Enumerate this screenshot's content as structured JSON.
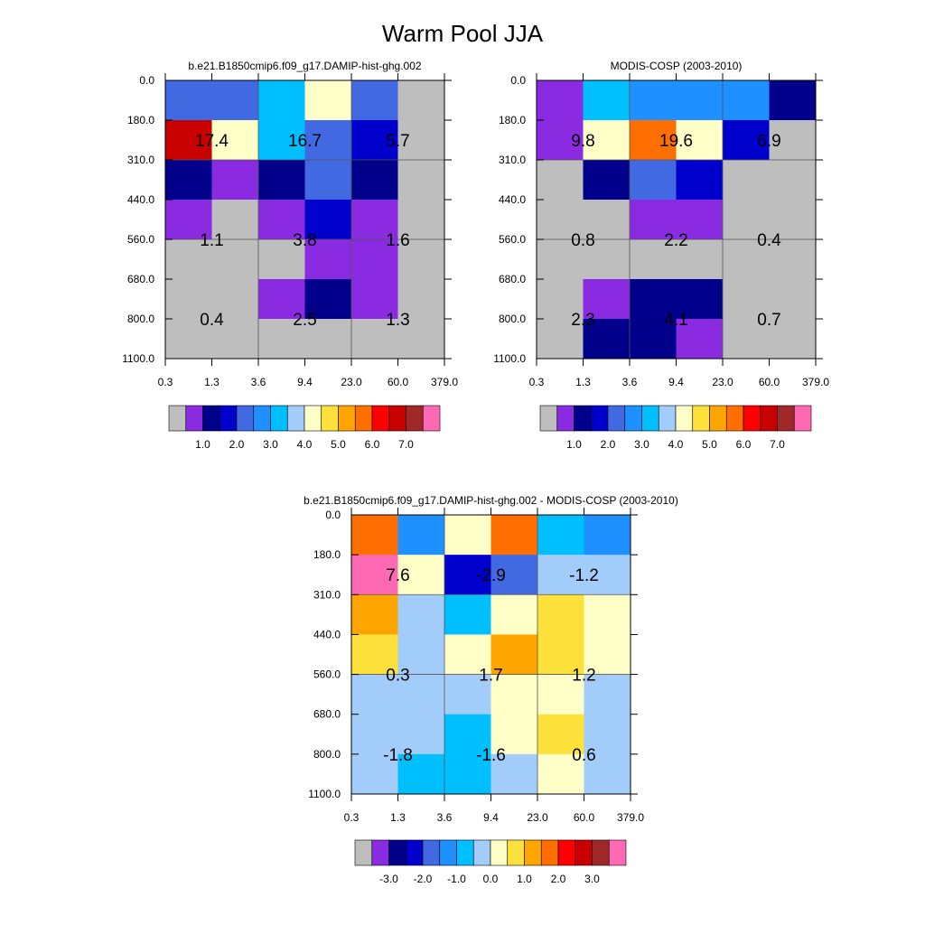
{
  "page_title": "Warm Pool JJA",
  "palettes": {
    "absolute": [
      "#bebebe",
      "#8a2be2",
      "#00008b",
      "#0000cd",
      "#4169e1",
      "#1e90ff",
      "#00bfff",
      "#a2cdfa",
      "#ffffc8",
      "#ffe13c",
      "#ffa500",
      "#ff6e00",
      "#ff0000",
      "#c80000",
      "#a02828",
      "#ff69b4"
    ],
    "difference": [
      "#bebebe",
      "#8a2be2",
      "#00008b",
      "#0000cd",
      "#4169e1",
      "#1e90ff",
      "#00bfff",
      "#a2cdfa",
      "#ffffc8",
      "#ffe13c",
      "#ffa500",
      "#ff6e00",
      "#ff0000",
      "#c80000",
      "#a02828",
      "#ff69b4"
    ]
  },
  "colorbars": {
    "absolute": {
      "labels": [
        "1.0",
        "2.0",
        "3.0",
        "4.0",
        "5.0",
        "6.0",
        "7.0"
      ]
    },
    "difference": {
      "labels": [
        "-3.0",
        "-2.0",
        "-1.0",
        "0.0",
        "1.0",
        "2.0",
        "3.0"
      ]
    }
  },
  "chart_data": [
    {
      "type": "heatmap",
      "title": "b.e21.B1850cmip6.f09_g17.DAMIP-hist-ghg.002",
      "x_tick_labels": [
        "0.3",
        "1.3",
        "3.6",
        "9.4",
        "23.0",
        "60.0",
        "379.0"
      ],
      "y_tick_labels": [
        "0.0",
        "180.0",
        "310.0",
        "440.0",
        "560.0",
        "680.0",
        "800.0",
        "1100.0"
      ],
      "palette": "absolute",
      "grid_color_index": [
        [
          4,
          4,
          6,
          8,
          4,
          0
        ],
        [
          13,
          8,
          6,
          4,
          3,
          0
        ],
        [
          2,
          1,
          2,
          4,
          2,
          0
        ],
        [
          1,
          0,
          1,
          3,
          1,
          0
        ],
        [
          0,
          0,
          0,
          1,
          1,
          0
        ],
        [
          0,
          0,
          1,
          2,
          1,
          0
        ],
        [
          0,
          0,
          0,
          0,
          0,
          0
        ]
      ],
      "block_labels": [
        [
          "17.4",
          "16.7",
          "5.7"
        ],
        [
          "1.1",
          "3.8",
          "1.6"
        ],
        [
          "0.4",
          "2.5",
          "1.3"
        ]
      ]
    },
    {
      "type": "heatmap",
      "title": "MODIS-COSP (2003-2010)",
      "x_tick_labels": [
        "0.3",
        "1.3",
        "3.6",
        "9.4",
        "23.0",
        "60.0",
        "379.0"
      ],
      "y_tick_labels": [
        "0.0",
        "180.0",
        "310.0",
        "440.0",
        "560.0",
        "680.0",
        "800.0",
        "1100.0"
      ],
      "palette": "absolute",
      "grid_color_index": [
        [
          1,
          6,
          5,
          5,
          5,
          2
        ],
        [
          1,
          8,
          11,
          8,
          3,
          0
        ],
        [
          0,
          2,
          4,
          3,
          0,
          0
        ],
        [
          0,
          0,
          1,
          1,
          0,
          0
        ],
        [
          0,
          0,
          0,
          0,
          0,
          0
        ],
        [
          0,
          1,
          2,
          2,
          0,
          0
        ],
        [
          0,
          2,
          2,
          1,
          0,
          0
        ]
      ],
      "block_labels": [
        [
          "9.8",
          "19.6",
          "6.9"
        ],
        [
          "0.8",
          "2.2",
          "0.4"
        ],
        [
          "2.3",
          "4.1",
          "0.7"
        ]
      ]
    },
    {
      "type": "heatmap",
      "title": "b.e21.B1850cmip6.f09_g17.DAMIP-hist-ghg.002 - MODIS-COSP (2003-2010)",
      "x_tick_labels": [
        "0.3",
        "1.3",
        "3.6",
        "9.4",
        "23.0",
        "60.0",
        "379.0"
      ],
      "y_tick_labels": [
        "0.0",
        "180.0",
        "310.0",
        "440.0",
        "560.0",
        "680.0",
        "800.0",
        "1100.0"
      ],
      "palette": "difference",
      "grid_color_index": [
        [
          11,
          5,
          8,
          11,
          6,
          5
        ],
        [
          15,
          8,
          3,
          4,
          7,
          7
        ],
        [
          10,
          7,
          6,
          8,
          9,
          8
        ],
        [
          9,
          7,
          8,
          10,
          9,
          8
        ],
        [
          7,
          7,
          7,
          8,
          8,
          7
        ],
        [
          7,
          7,
          6,
          8,
          9,
          7
        ],
        [
          7,
          6,
          6,
          7,
          8,
          7
        ]
      ],
      "block_labels": [
        [
          "7.6",
          "-2.9",
          "-1.2"
        ],
        [
          "0.3",
          "1.7",
          "1.2"
        ],
        [
          "-1.8",
          "-1.6",
          "0.6"
        ]
      ]
    }
  ]
}
